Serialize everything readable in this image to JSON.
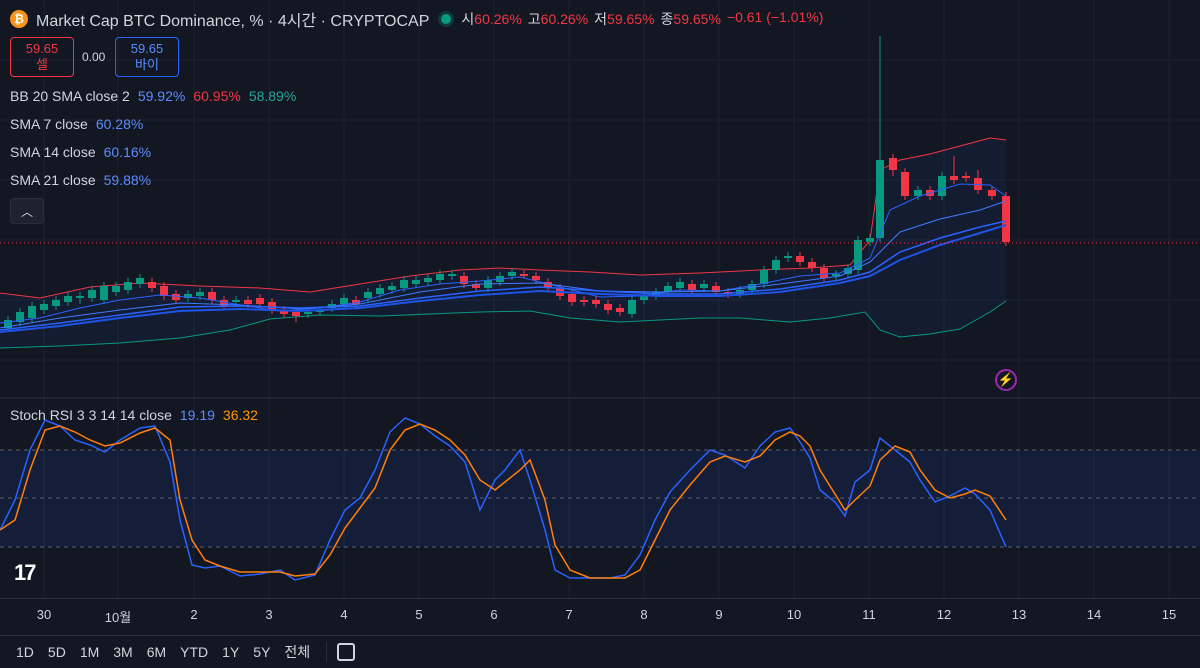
{
  "header": {
    "title": "Market Cap BTC Dominance, % · 4시간 · CRYPTOCAP",
    "icon_letter": "₿",
    "ohlc": [
      {
        "label": "시",
        "value": "60.26%"
      },
      {
        "label": "고",
        "value": "60.26%"
      },
      {
        "label": "저",
        "value": "59.65%"
      },
      {
        "label": "종",
        "value": "59.65%"
      }
    ],
    "change": "−0.61 (−1.01%)"
  },
  "trade": {
    "sell_price": "59.65",
    "sell_label": "셀",
    "spread": "0.00",
    "buy_price": "59.65",
    "buy_label": "바이"
  },
  "indicators": [
    {
      "name": "BB 20 SMA close 2",
      "values": [
        {
          "v": "59.92%",
          "color": "#5b8cff"
        },
        {
          "v": "60.95%",
          "color": "#f23645"
        },
        {
          "v": "58.89%",
          "color": "#26a69a"
        }
      ]
    },
    {
      "name": "SMA 7 close",
      "values": [
        {
          "v": "60.28%",
          "color": "#5b8cff"
        }
      ]
    },
    {
      "name": "SMA 14 close",
      "values": [
        {
          "v": "60.16%",
          "color": "#5b8cff"
        }
      ]
    },
    {
      "name": "SMA 21 close",
      "values": [
        {
          "v": "59.88%",
          "color": "#5b8cff"
        }
      ]
    }
  ],
  "stoch": {
    "name": "Stoch RSI 3 3 14 14 close",
    "k": "19.19",
    "d": "36.32"
  },
  "x_labels": [
    "30",
    "10월",
    "2",
    "3",
    "4",
    "5",
    "6",
    "7",
    "8",
    "9",
    "10",
    "11",
    "12",
    "13",
    "14",
    "15"
  ],
  "ranges": [
    "1D",
    "5D",
    "1M",
    "3M",
    "6M",
    "YTD",
    "1Y",
    "5Y",
    "전체"
  ],
  "icons": {
    "alert": "lightning-alert-icon",
    "collapse": "chevron-up-icon",
    "logo": "tradingview-logo-icon",
    "calendar": "goto-date-icon"
  },
  "colors": {
    "up": "#089981",
    "down": "#f23645",
    "bb_upper": "#f23645",
    "bb_lower": "#089981",
    "sma": "#2962ff",
    "k_line": "#2962ff",
    "d_line": "#ff7f0e"
  },
  "chart_data": [
    {
      "type": "candlestick",
      "title": "Market Cap BTC Dominance, %",
      "interval": "4시간",
      "last": {
        "open": 60.26,
        "high": 60.26,
        "low": 59.65,
        "close": 59.65
      },
      "overlays": [
        "BB 20 SMA close 2",
        "SMA 7 close",
        "SMA 14 close",
        "SMA 21 close"
      ],
      "series": [
        {
          "name": "BB 20 SMA close 2",
          "last_values": [
            59.92,
            60.95,
            58.89
          ]
        },
        {
          "name": "SMA 7 close",
          "last_value": 60.28
        },
        {
          "name": "SMA 14 close",
          "last_value": 60.16
        },
        {
          "name": "SMA 21 close",
          "last_value": 59.88
        }
      ]
    },
    {
      "type": "line",
      "title": "Stoch RSI 3 3 14 14 close",
      "series": [
        {
          "name": "K",
          "last_value": 19.19
        },
        {
          "name": "D",
          "last_value": 36.32
        }
      ],
      "ylim": [
        0,
        100
      ],
      "bands": [
        20,
        50,
        80
      ]
    }
  ]
}
